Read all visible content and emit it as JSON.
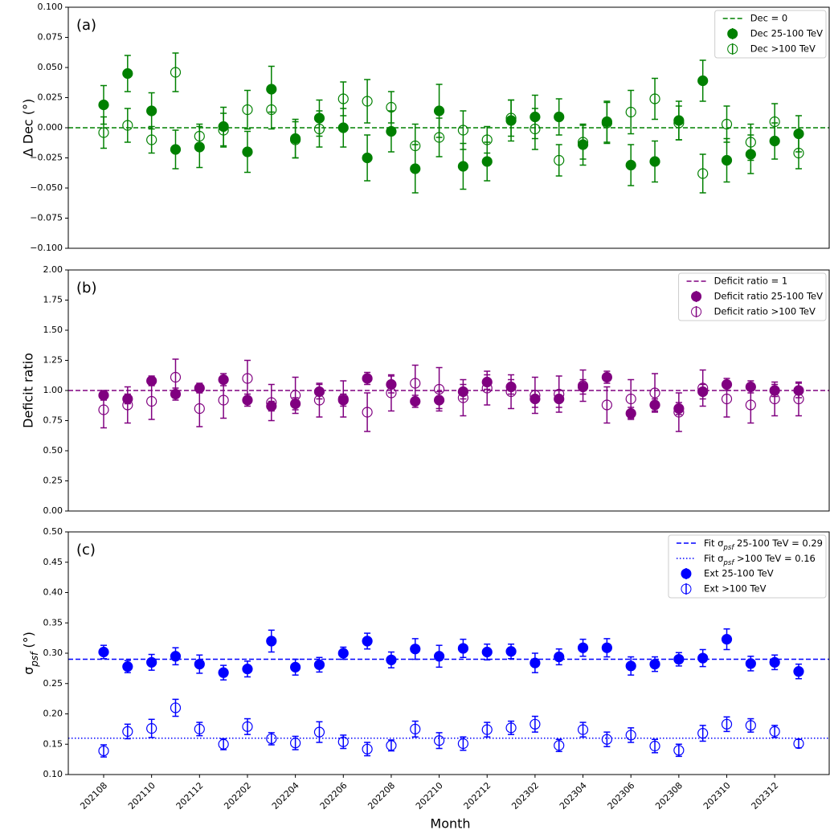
{
  "chart_data": [
    {
      "type": "errorbar",
      "panel_label": "(a)",
      "ylabel": "Δ Dec (°)",
      "legend": "upper right",
      "ylim": [
        -0.1,
        0.1
      ],
      "yticks": [
        {
          "value": -0.1,
          "label": "−0.100"
        },
        {
          "value": -0.075,
          "label": "−0.075"
        },
        {
          "value": -0.05,
          "label": "−0.050"
        },
        {
          "value": -0.025,
          "label": "−0.025"
        },
        {
          "value": 0,
          "label": "0.000"
        },
        {
          "value": 0.025,
          "label": "0.025"
        },
        {
          "value": 0.05,
          "label": "0.050"
        },
        {
          "value": 0.075,
          "label": "0.075"
        },
        {
          "value": 0.1,
          "label": "0.100"
        }
      ],
      "reference_lines": [
        {
          "name": "Dec = 0",
          "value": 0,
          "color": "#008000",
          "style": "dashed"
        }
      ],
      "series": [
        {
          "name": "Dec 25-100 TeV",
          "color": "#008000",
          "marker": "filled",
          "values": [
            0.019,
            0.045,
            0.014,
            -0.018,
            -0.016,
            0.001,
            -0.02,
            0.032,
            -0.009,
            0.008,
            0.0,
            -0.025,
            -0.003,
            -0.034,
            0.014,
            -0.032,
            -0.028,
            0.006,
            0.009,
            0.009,
            -0.014,
            0.005,
            -0.031,
            -0.028,
            0.006,
            0.039,
            -0.027,
            -0.022,
            -0.011,
            -0.005
          ],
          "errors": [
            0.016,
            0.015,
            0.015,
            0.016,
            0.017,
            0.016,
            0.017,
            0.019,
            0.016,
            0.015,
            0.016,
            0.019,
            0.017,
            0.02,
            0.022,
            0.019,
            0.016,
            0.017,
            0.018,
            0.015,
            0.017,
            0.017,
            0.017,
            0.017,
            0.016,
            0.017,
            0.018,
            0.016,
            0.015,
            0.015
          ]
        },
        {
          "name": "Dec >100 TeV",
          "color": "#008000",
          "marker": "open",
          "values": [
            -0.004,
            0.002,
            -0.01,
            0.046,
            -0.007,
            -0.002,
            0.015,
            0.015,
            -0.01,
            -0.001,
            0.024,
            0.022,
            0.017,
            -0.015,
            -0.008,
            -0.002,
            -0.01,
            0.008,
            -0.001,
            -0.027,
            -0.012,
            0.004,
            0.013,
            0.024,
            0.004,
            -0.038,
            0.003,
            -0.012,
            0.005,
            -0.021
          ],
          "errors": [
            0.013,
            0.014,
            0.011,
            0.016,
            0.01,
            0.014,
            0.016,
            0.016,
            0.015,
            0.015,
            0.014,
            0.018,
            0.013,
            0.018,
            0.016,
            0.016,
            0.011,
            0.015,
            0.017,
            0.013,
            0.014,
            0.017,
            0.018,
            0.017,
            0.014,
            0.016,
            0.015,
            0.015,
            0.015,
            0.013
          ]
        }
      ]
    },
    {
      "type": "errorbar",
      "panel_label": "(b)",
      "ylabel": "Deficit ratio",
      "legend": "upper right",
      "ylim": [
        0,
        2
      ],
      "yticks": [
        {
          "value": 0,
          "label": "0.00"
        },
        {
          "value": 0.25,
          "label": "0.25"
        },
        {
          "value": 0.5,
          "label": "0.50"
        },
        {
          "value": 0.75,
          "label": "0.75"
        },
        {
          "value": 1,
          "label": "1.00"
        },
        {
          "value": 1.25,
          "label": "1.25"
        },
        {
          "value": 1.5,
          "label": "1.50"
        },
        {
          "value": 1.75,
          "label": "1.75"
        },
        {
          "value": 2,
          "label": "2.00"
        }
      ],
      "reference_lines": [
        {
          "name": "Deficit ratio = 1",
          "value": 1,
          "color": "#800080",
          "style": "dashed"
        }
      ],
      "series": [
        {
          "name": "Deficit ratio 25-100 TeV",
          "color": "#800080",
          "marker": "filled",
          "values": [
            0.96,
            0.93,
            1.08,
            0.97,
            1.02,
            1.09,
            0.92,
            0.87,
            0.89,
            0.99,
            0.92,
            1.1,
            1.05,
            0.91,
            0.92,
            0.99,
            1.07,
            1.03,
            0.93,
            0.93,
            1.03,
            1.11,
            0.81,
            0.88,
            0.85,
            0.99,
            1.05,
            1.03,
            1.0,
            1.0
          ],
          "errors": [
            0.04,
            0.04,
            0.04,
            0.05,
            0.04,
            0.05,
            0.05,
            0.04,
            0.05,
            0.06,
            0.05,
            0.05,
            0.07,
            0.05,
            0.07,
            0.06,
            0.06,
            0.06,
            0.07,
            0.07,
            0.06,
            0.05,
            0.05,
            0.05,
            0.05,
            0.06,
            0.05,
            0.05,
            0.05,
            0.06
          ]
        },
        {
          "name": "Deficit ratio >100 TeV",
          "color": "#800080",
          "marker": "open",
          "values": [
            0.84,
            0.88,
            0.91,
            1.11,
            0.85,
            0.92,
            1.1,
            0.9,
            0.96,
            0.92,
            0.93,
            0.82,
            0.98,
            1.06,
            1.01,
            0.94,
            1.02,
            0.99,
            0.96,
            0.97,
            1.04,
            0.88,
            0.93,
            0.98,
            0.82,
            1.02,
            0.93,
            0.88,
            0.93,
            0.93
          ],
          "errors": [
            0.15,
            0.15,
            0.15,
            0.15,
            0.15,
            0.15,
            0.15,
            0.15,
            0.15,
            0.14,
            0.15,
            0.16,
            0.15,
            0.15,
            0.18,
            0.15,
            0.14,
            0.14,
            0.15,
            0.15,
            0.13,
            0.15,
            0.16,
            0.16,
            0.16,
            0.15,
            0.15,
            0.15,
            0.14,
            0.14
          ]
        }
      ]
    },
    {
      "type": "errorbar",
      "panel_label": "(c)",
      "ylabel": "σpsf (°)",
      "xlabel": "Month",
      "legend": "upper right",
      "categories": [
        "202108",
        null,
        "202110",
        null,
        "202112",
        null,
        "202202",
        null,
        "202204",
        null,
        "202206",
        null,
        "202208",
        null,
        "202210",
        null,
        "202212",
        null,
        "202302",
        null,
        "202304",
        null,
        "202306",
        null,
        "202308",
        null,
        "202310",
        null,
        "202312",
        null
      ],
      "ylim": [
        0.1,
        0.5
      ],
      "yticks": [
        {
          "value": 0.1,
          "label": "0.10"
        },
        {
          "value": 0.15,
          "label": "0.15"
        },
        {
          "value": 0.2,
          "label": "0.20"
        },
        {
          "value": 0.25,
          "label": "0.25"
        },
        {
          "value": 0.3,
          "label": "0.30"
        },
        {
          "value": 0.35,
          "label": "0.35"
        },
        {
          "value": 0.4,
          "label": "0.40"
        },
        {
          "value": 0.45,
          "label": "0.45"
        },
        {
          "value": 0.5,
          "label": "0.50"
        }
      ],
      "reference_lines": [
        {
          "name": "Fit σpsf 25-100 TeV = 0.29",
          "value": 0.29,
          "color": "#0000ff",
          "style": "dashed"
        },
        {
          "name": "Fit σpsf  >100 TeV = 0.16",
          "value": 0.16,
          "color": "#0000ff",
          "style": "dotted"
        }
      ],
      "series": [
        {
          "name": "Ext 25-100 TeV",
          "color": "#0000ff",
          "marker": "filled",
          "values": [
            0.302,
            0.278,
            0.285,
            0.295,
            0.282,
            0.268,
            0.274,
            0.32,
            0.277,
            0.281,
            0.3,
            0.32,
            0.289,
            0.307,
            0.295,
            0.308,
            0.302,
            0.303,
            0.284,
            0.294,
            0.309,
            0.309,
            0.279,
            0.282,
            0.29,
            0.292,
            0.323,
            0.283,
            0.285,
            0.27
          ],
          "errors": [
            0.011,
            0.01,
            0.013,
            0.014,
            0.015,
            0.012,
            0.013,
            0.018,
            0.013,
            0.012,
            0.01,
            0.013,
            0.013,
            0.017,
            0.018,
            0.015,
            0.013,
            0.012,
            0.016,
            0.013,
            0.014,
            0.015,
            0.015,
            0.012,
            0.011,
            0.014,
            0.017,
            0.012,
            0.012,
            0.012
          ]
        },
        {
          "name": "Ext >100 TeV",
          "color": "#0000ff",
          "marker": "open",
          "values": [
            0.139,
            0.171,
            0.176,
            0.21,
            0.175,
            0.15,
            0.179,
            0.159,
            0.152,
            0.17,
            0.154,
            0.142,
            0.148,
            0.175,
            0.156,
            0.151,
            0.174,
            0.177,
            0.183,
            0.148,
            0.174,
            0.158,
            0.165,
            0.147,
            0.14,
            0.168,
            0.183,
            0.181,
            0.171,
            0.151
          ],
          "errors": [
            0.01,
            0.012,
            0.015,
            0.014,
            0.011,
            0.009,
            0.013,
            0.01,
            0.011,
            0.017,
            0.011,
            0.011,
            0.009,
            0.013,
            0.013,
            0.011,
            0.012,
            0.011,
            0.013,
            0.01,
            0.012,
            0.012,
            0.012,
            0.011,
            0.01,
            0.013,
            0.012,
            0.011,
            0.01,
            0.007
          ]
        }
      ]
    }
  ]
}
